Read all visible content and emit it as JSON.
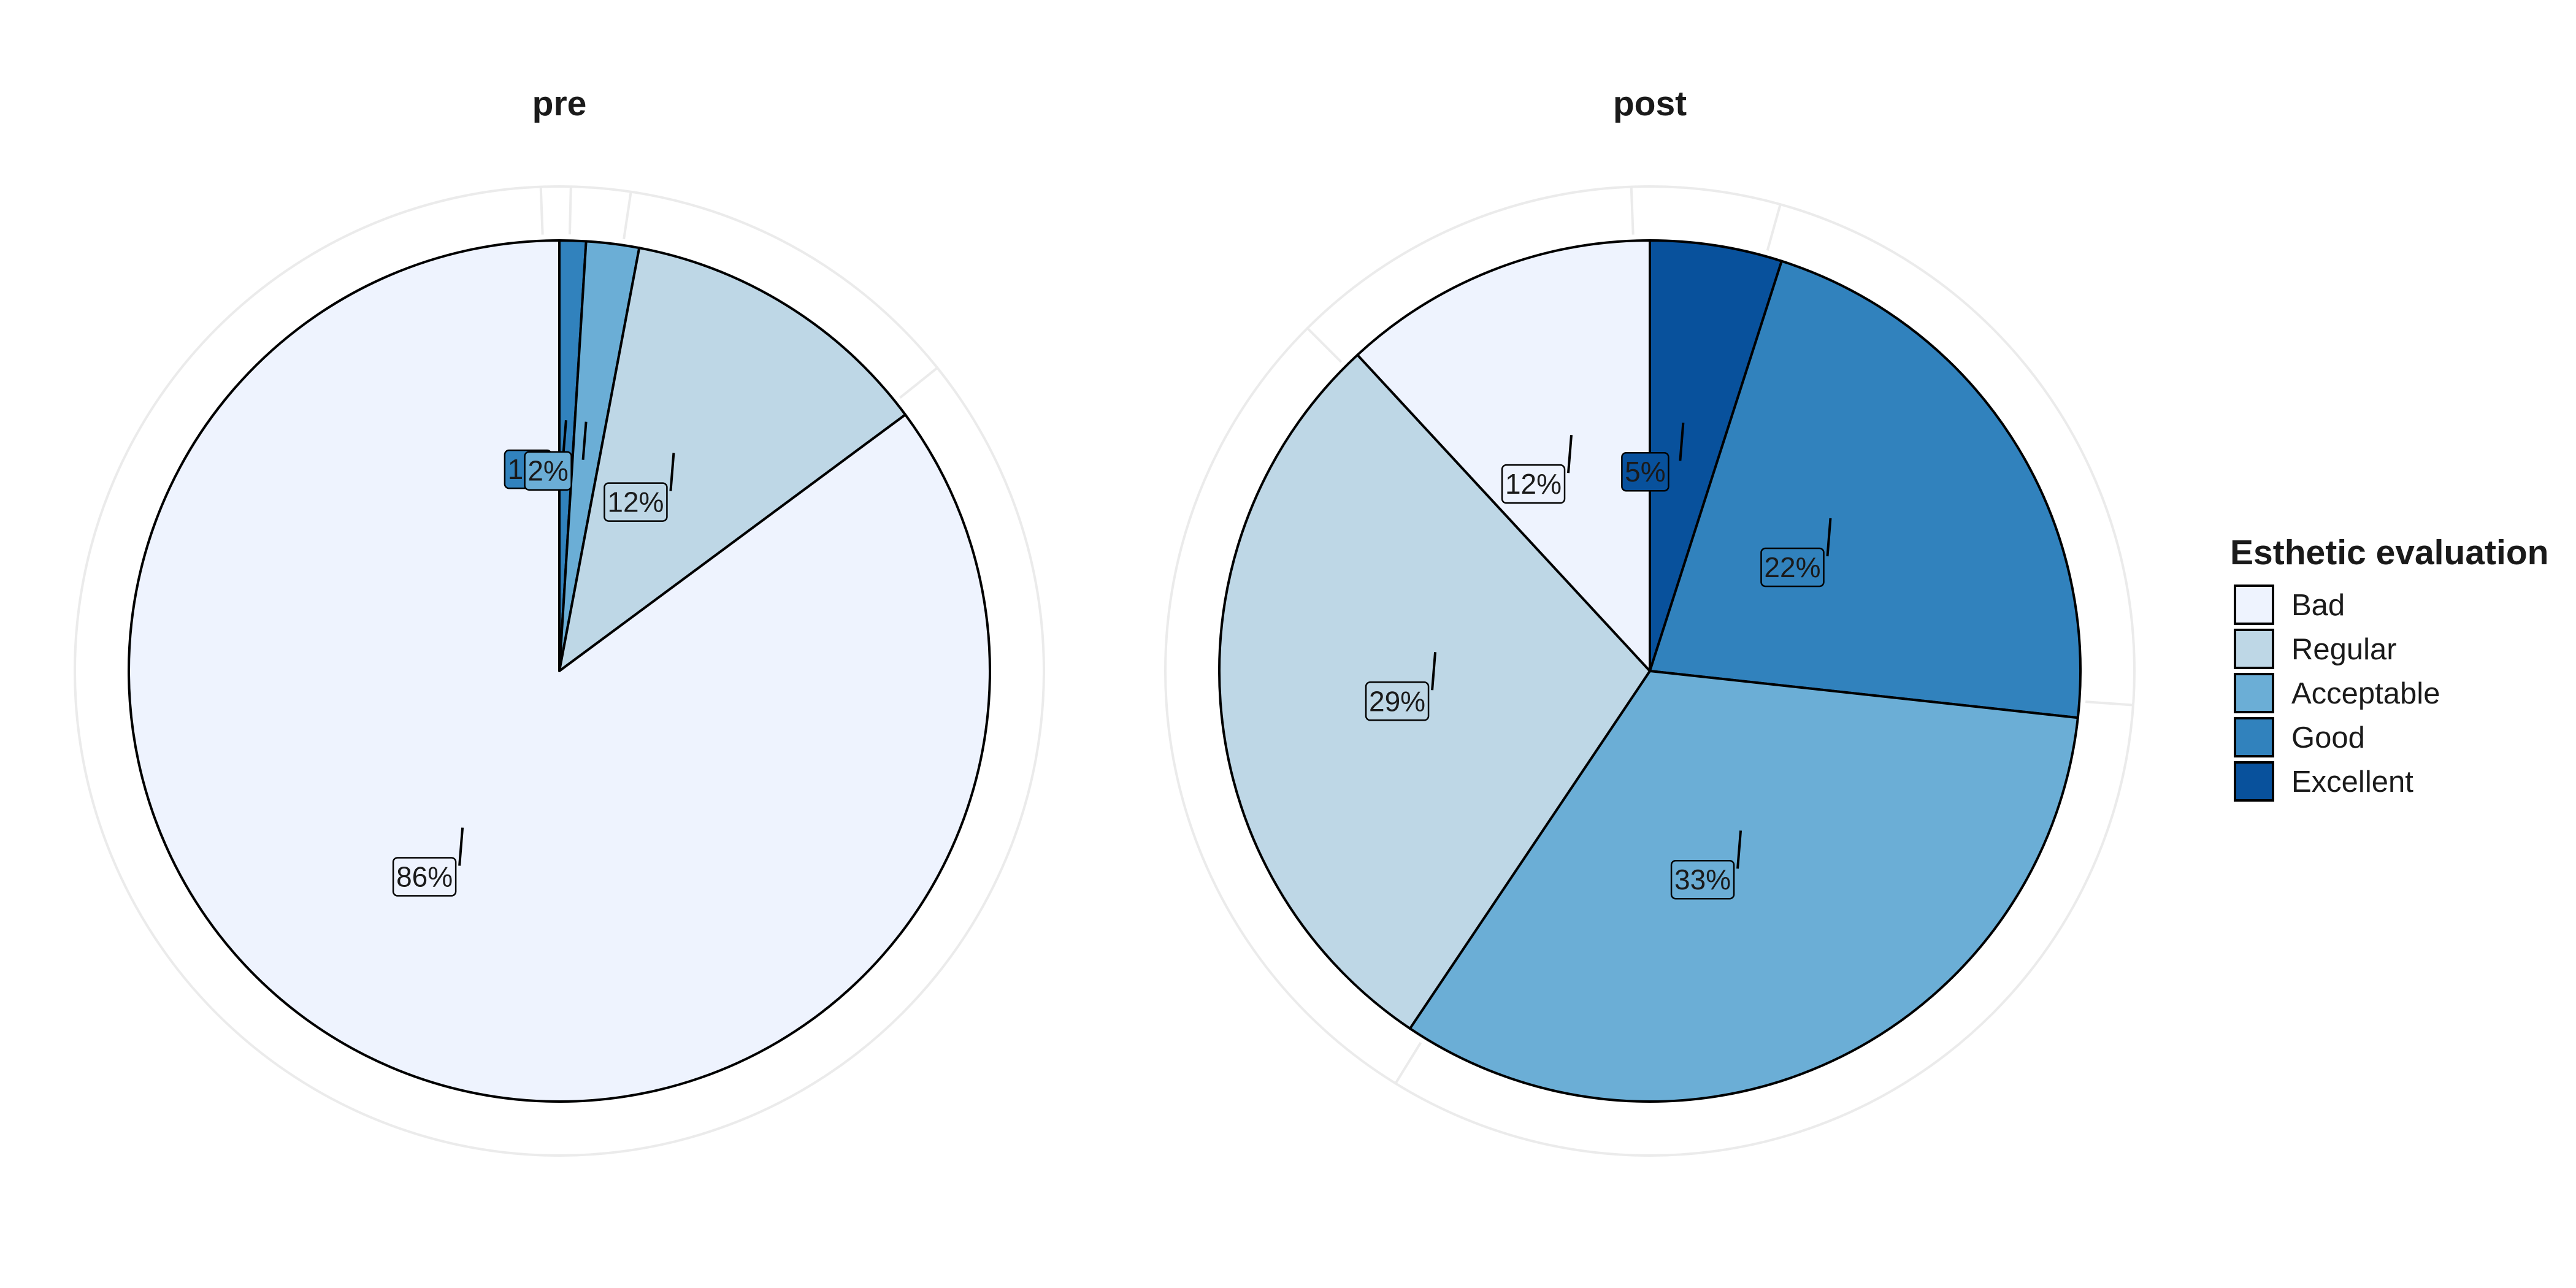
{
  "chart_data": [
    {
      "type": "pie",
      "title": "pre",
      "categories": [
        "Bad",
        "Regular",
        "Acceptable",
        "Good",
        "Excellent"
      ],
      "values": [
        86,
        12,
        2,
        1,
        0
      ],
      "labels": [
        "86%",
        "12%",
        "2%",
        "1%",
        ""
      ]
    },
    {
      "type": "pie",
      "title": "post",
      "categories": [
        "Bad",
        "Regular",
        "Acceptable",
        "Good",
        "Excellent"
      ],
      "values": [
        12,
        29,
        33,
        22,
        5
      ],
      "labels": [
        "12%",
        "29%",
        "33%",
        "22%",
        "5%"
      ]
    }
  ],
  "legend": {
    "title": "Esthetic evaluation",
    "items": [
      "Bad",
      "Regular",
      "Acceptable",
      "Good",
      "Excellent"
    ],
    "placement": "right"
  },
  "colors": {
    "Bad": "#eef3fe",
    "Regular": "#bed7e6",
    "Acceptable": "#6baed6",
    "Good": "#3182bd",
    "Excellent": "#08519c"
  },
  "slice_order_clockwise_from_top": [
    "Excellent",
    "Good",
    "Acceptable",
    "Regular",
    "Bad"
  ],
  "grid": true
}
